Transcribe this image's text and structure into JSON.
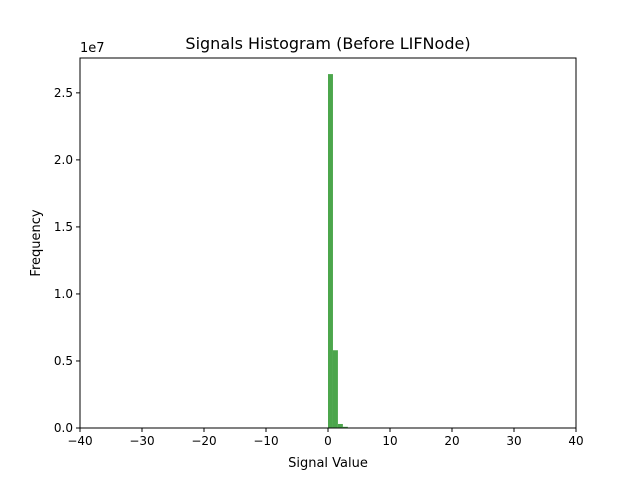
{
  "chart_data": {
    "type": "bar",
    "title": "Signals Histogram (Before LIFNode)",
    "xlabel": "Signal Value",
    "ylabel": "Frequency",
    "y_scale_label": "1e7",
    "xlim": [
      -40,
      40
    ],
    "ylim": [
      0,
      27600000
    ],
    "x_ticks": [
      -40,
      -30,
      -20,
      -10,
      0,
      10,
      20,
      30,
      40
    ],
    "x_tick_labels": [
      "−40",
      "−30",
      "−20",
      "−10",
      "0",
      "10",
      "20",
      "30",
      "40"
    ],
    "y_ticks": [
      0,
      5000000,
      10000000,
      15000000,
      20000000,
      25000000
    ],
    "y_tick_labels": [
      "0.0",
      "0.5",
      "1.0",
      "1.5",
      "2.0",
      "2.5"
    ],
    "bar_color": "#4ca64c",
    "bins": [
      {
        "x0": 0.0,
        "x1": 0.8,
        "count": 26400000
      },
      {
        "x0": 0.8,
        "x1": 1.6,
        "count": 5800000
      },
      {
        "x0": 1.6,
        "x1": 2.4,
        "count": 300000
      },
      {
        "x0": 2.4,
        "x1": 3.2,
        "count": 90000
      },
      {
        "x0": 3.2,
        "x1": 4.0,
        "count": 30000
      }
    ],
    "grid": false,
    "legend": null
  }
}
